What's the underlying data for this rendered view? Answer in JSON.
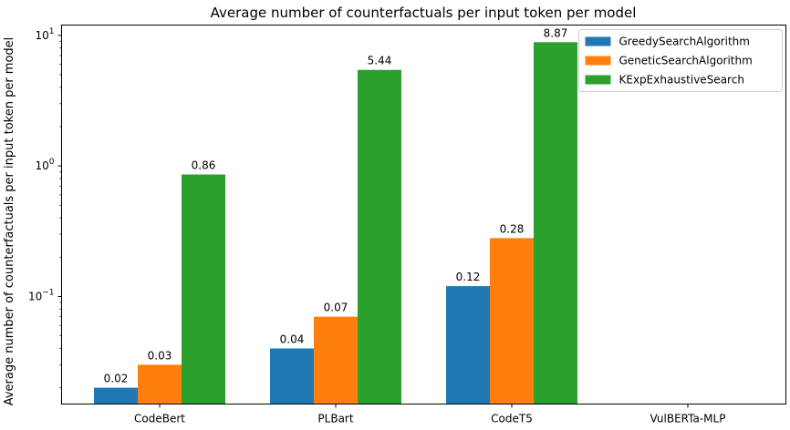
{
  "chart_data": {
    "type": "bar",
    "title": "Average number of counterfactuals per input token per model",
    "xlabel": "",
    "ylabel": "Average number of counterfactuals per input token per model",
    "yscale": "log",
    "ylim": [
      0.015,
      12
    ],
    "y_ticks": [
      {
        "value": 0.1,
        "base": "10",
        "exp": "−1"
      },
      {
        "value": 1,
        "base": "10",
        "exp": "0"
      },
      {
        "value": 10,
        "base": "10",
        "exp": "1"
      }
    ],
    "categories": [
      "CodeBert",
      "PLBart",
      "CodeT5",
      "VulBERTa-MLP"
    ],
    "series": [
      {
        "name": "GreedySearchAlgorithm",
        "color": "#1f77b4",
        "values": [
          0.02,
          0.04,
          0.12,
          null
        ],
        "labels": [
          "0.02",
          "0.04",
          "0.12",
          null
        ]
      },
      {
        "name": "GeneticSearchAlgorithm",
        "color": "#ff7f0e",
        "values": [
          0.03,
          0.07,
          0.28,
          null
        ],
        "labels": [
          "0.03",
          "0.07",
          "0.28",
          null
        ]
      },
      {
        "name": "KExpExhaustiveSearch",
        "color": "#2ca02c",
        "values": [
          0.86,
          5.44,
          8.87,
          null
        ],
        "labels": [
          "0.86",
          "5.44",
          "8.87",
          null
        ]
      }
    ],
    "legend": "top-right",
    "grid": false
  }
}
